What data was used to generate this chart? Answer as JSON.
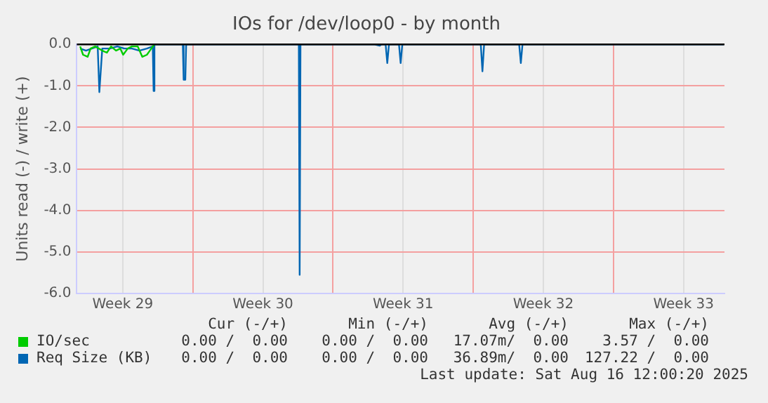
{
  "chart_data": {
    "type": "line",
    "title": "IOs for /dev/loop0 - by month",
    "ylabel": "Units read (-) / write (+)",
    "xlim": [
      "2025-07-15T05:00",
      "2025-08-16T13:00"
    ],
    "xticks": [
      {
        "value": "2025-07-17T12:00",
        "label": "Week 29"
      },
      {
        "value": "2025-07-21",
        "label": null
      },
      {
        "value": "2025-07-24T12:00",
        "label": "Week 30"
      },
      {
        "value": "2025-07-28",
        "label": null
      },
      {
        "value": "2025-07-31T12:00",
        "label": "Week 31"
      },
      {
        "value": "2025-08-04",
        "label": null
      },
      {
        "value": "2025-08-07T12:00",
        "label": "Week 32"
      },
      {
        "value": "2025-08-11",
        "label": null
      },
      {
        "value": "2025-08-14T12:00",
        "label": "Week 33"
      }
    ],
    "ylim": [
      -6,
      0
    ],
    "yticks": [
      {
        "value": -6,
        "label": "-6.0"
      },
      {
        "value": -5,
        "label": "-5.0"
      },
      {
        "value": -4,
        "label": "-4.0"
      },
      {
        "value": -3,
        "label": "-3.0"
      },
      {
        "value": -2,
        "label": "-2.0"
      },
      {
        "value": -1,
        "label": "-1.0"
      },
      {
        "value": 0,
        "label": "0.0"
      }
    ],
    "grid": true,
    "legend": "bottom left",
    "marker": "none",
    "line_style": "solid",
    "ref_lines": [
      {
        "axis": "y",
        "value": 0,
        "color": "#000000"
      }
    ],
    "series": [
      {
        "name": "IO/sec",
        "color": "#00cc00",
        "x": [
          "2025-07-15T09:00",
          "2025-07-15T12:30",
          "2025-07-15T18:00",
          "2025-07-15T21:30",
          "2025-07-16T03:00",
          "2025-07-16T11:30",
          "2025-07-16T17:00",
          "2025-07-16T22:00",
          "2025-07-17T04:00",
          "2025-07-17T09:00",
          "2025-07-17T12:30",
          "2025-07-17T18:00",
          "2025-07-17T23:00",
          "2025-07-18T06:00",
          "2025-07-18T11:30",
          "2025-07-18T17:00",
          "2025-07-18T20:30",
          "2025-07-19T00:00",
          "2025-07-19T02:00"
        ],
        "values": [
          -0.05,
          -0.25,
          -0.3,
          -0.1,
          -0.05,
          -0.15,
          -0.2,
          -0.05,
          -0.15,
          -0.1,
          -0.25,
          -0.1,
          -0.05,
          -0.05,
          -0.3,
          -0.25,
          -0.15,
          -0.05,
          0
        ]
      },
      {
        "name": "Req Size (KB)",
        "color": "#0066b3",
        "x": [
          "2025-07-15T09:00",
          "2025-07-15T16:00",
          "2025-07-15T23:00",
          "2025-07-16T06:00",
          "2025-07-16T08:00",
          "2025-07-16T11:30",
          "2025-07-16T20:30",
          "2025-07-17T05:30",
          "2025-07-17T14:00",
          "2025-07-17T23:00",
          "2025-07-18T08:00",
          "2025-07-18T17:00",
          "2025-07-19T00:00",
          "2025-07-19T01:00",
          "2025-07-19T02:00",
          "2025-07-20T12:00",
          "2025-07-20T13:00",
          "2025-07-20T15:00",
          "2025-07-20T16:00",
          "2025-07-26T07:00",
          "2025-07-26T08:00",
          "2025-07-26T09:00",
          "2025-07-30T01:00",
          "2025-07-30T08:00",
          "2025-07-30T10:00",
          "2025-07-30T15:00",
          "2025-07-30T17:00",
          "2025-07-30T19:00",
          "2025-07-31T07:00",
          "2025-07-31T09:00",
          "2025-07-31T11:00",
          "2025-08-04T09:00",
          "2025-08-04T11:00",
          "2025-08-04T13:00",
          "2025-08-06T07:00",
          "2025-08-06T09:00",
          "2025-08-06T11:00",
          "2025-08-16T12:00"
        ],
        "values": [
          -0.1,
          -0.15,
          -0.1,
          -0.05,
          -1.15,
          -0.1,
          -0.1,
          -0.05,
          -0.1,
          -0.1,
          -0.15,
          -0.1,
          -0.05,
          -1.12,
          0,
          0,
          -0.85,
          -0.85,
          0,
          0,
          -5.55,
          0,
          0,
          -0.03,
          0,
          0,
          -0.45,
          0,
          0,
          -0.45,
          0,
          0,
          -0.65,
          0,
          0,
          -0.45,
          0,
          0
        ]
      }
    ],
    "annotations": [
      "Cur (-/+)",
      "Min (-/+)",
      "Avg (-/+)",
      "Max (-/+)",
      "0.00 /  0.00",
      "0.00 /  0.00",
      "17.07m/  0.00",
      "3.57 /  0.00",
      "0.00 /  0.00",
      "0.00 /  0.00",
      "36.89m/  0.00",
      "127.22 /  0.00",
      "Last update: Sat Aug 16 12:00:20 2025"
    ]
  }
}
